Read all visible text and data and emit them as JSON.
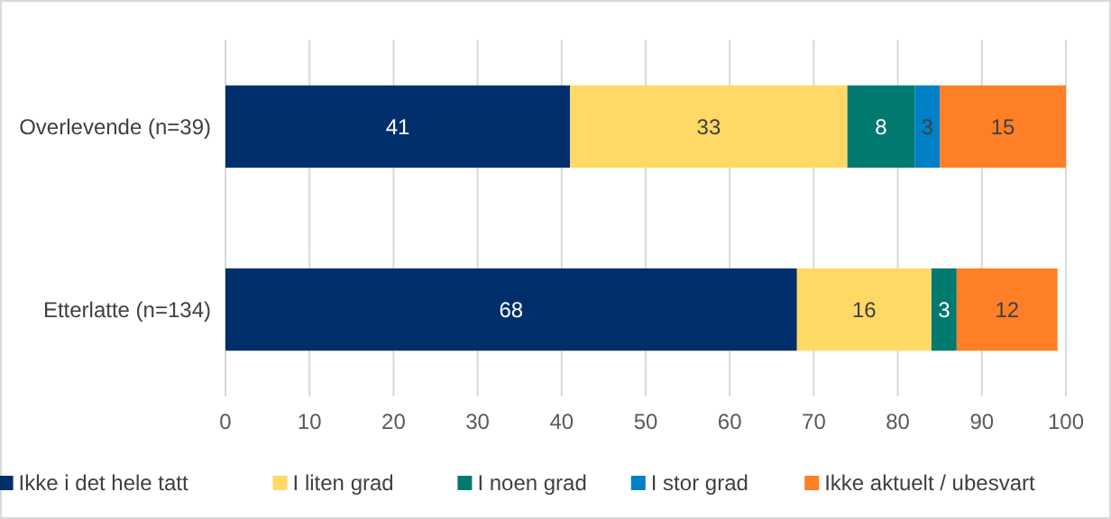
{
  "chart_data": {
    "type": "bar",
    "orientation": "horizontal",
    "stacked": true,
    "categories": [
      "Overlevende (n=39)",
      "Etterlatte (n=134)"
    ],
    "series": [
      {
        "name": "Ikke i det hele tatt",
        "color": "#002f6c",
        "values": [
          41,
          68
        ],
        "value_labels": [
          "41",
          "68"
        ]
      },
      {
        "name": "I liten grad",
        "color": "#ffd966",
        "values": [
          33,
          16
        ],
        "value_labels": [
          "33",
          "16"
        ]
      },
      {
        "name": "I noen grad",
        "color": "#007a6e",
        "values": [
          8,
          3
        ],
        "value_labels": [
          "8",
          "3"
        ]
      },
      {
        "name": "I stor grad",
        "color": "#0080c6",
        "values": [
          3,
          0
        ],
        "value_labels": [
          "3",
          null
        ]
      },
      {
        "name": "Ikke aktuelt / ubesvart",
        "color": "#ff7f27",
        "values": [
          15,
          12
        ],
        "value_labels": [
          "15",
          "12"
        ]
      }
    ],
    "xlim": [
      0,
      100
    ],
    "xticks": [
      0,
      10,
      20,
      30,
      40,
      50,
      60,
      70,
      80,
      90,
      100
    ],
    "grid": "x",
    "legend": "bottom"
  }
}
